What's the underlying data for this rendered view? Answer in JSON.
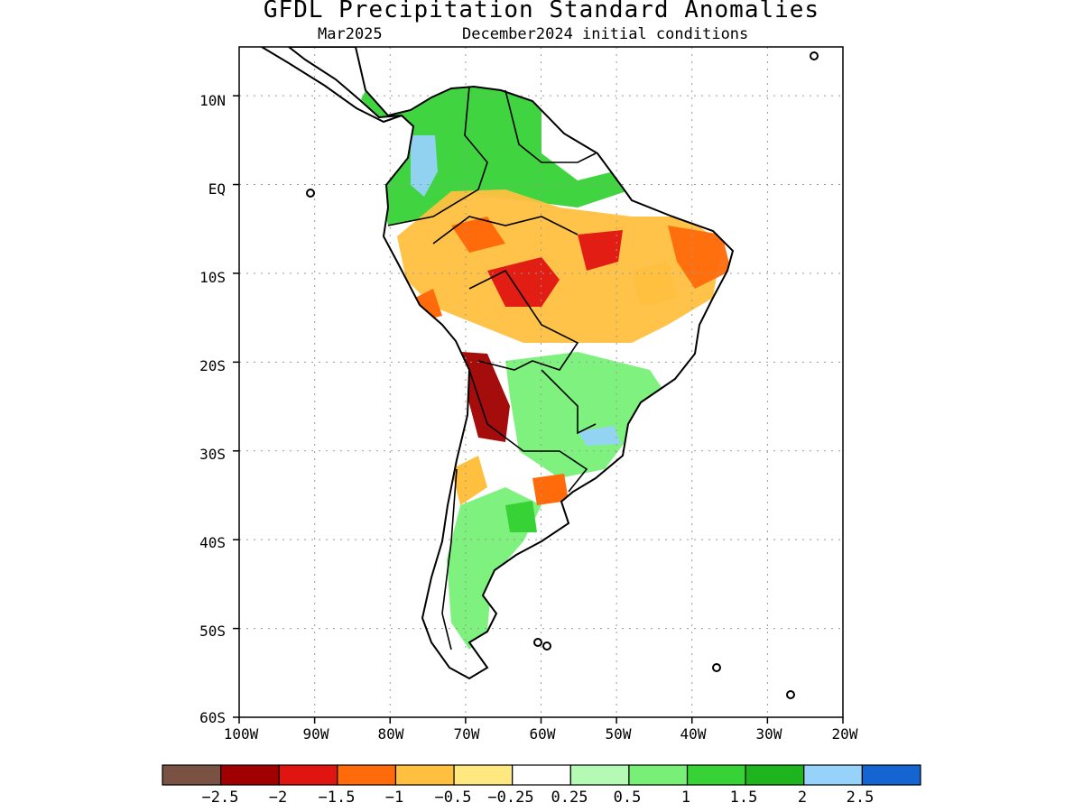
{
  "title": "GFDL Precipitation Standard Anomalies",
  "target_month": "Mar2025",
  "init_conditions": "December2024 initial conditions",
  "lat_labels": [
    "10N",
    "EQ",
    "10S",
    "20S",
    "30S",
    "40S",
    "50S",
    "60S"
  ],
  "lon_labels": [
    "100W",
    "90W",
    "80W",
    "70W",
    "60W",
    "50W",
    "40W",
    "30W",
    "20W"
  ],
  "extent": {
    "lon_min": -100,
    "lon_max": -20,
    "lat_min": -60,
    "lat_max": 15.5
  },
  "colorbar": {
    "colors": [
      "#7a5244",
      "#a00000",
      "#e01410",
      "#ff6a0a",
      "#ffc040",
      "#ffe880",
      "#ffffff",
      "#b4fab4",
      "#78f078",
      "#36d236",
      "#1eb41e",
      "#96d2fa",
      "#1464d2"
    ],
    "labels": [
      "−2.5",
      "−2",
      "−1.5",
      "−1",
      "−0.5",
      "−0.25",
      "0.25",
      "0.5",
      "1",
      "1.5",
      "2",
      "2.5"
    ]
  },
  "anomaly_regions": [
    {
      "name": "northwest-colombia",
      "category": "1.5"
    },
    {
      "name": "colombia-blue",
      "category": "2"
    },
    {
      "name": "amazon-orange",
      "category": "-0.5"
    },
    {
      "name": "central-brazil-red",
      "category": "-1.5"
    },
    {
      "name": "bolivia-red",
      "category": "-1.5"
    },
    {
      "name": "northern-argentina-red",
      "category": "-2"
    },
    {
      "name": "paraguay-green",
      "category": "1"
    },
    {
      "name": "southern-brazil-blue",
      "category": "2"
    },
    {
      "name": "northeast-brazil-orange",
      "category": "-1"
    },
    {
      "name": "patagonia-green",
      "category": "1"
    }
  ]
}
